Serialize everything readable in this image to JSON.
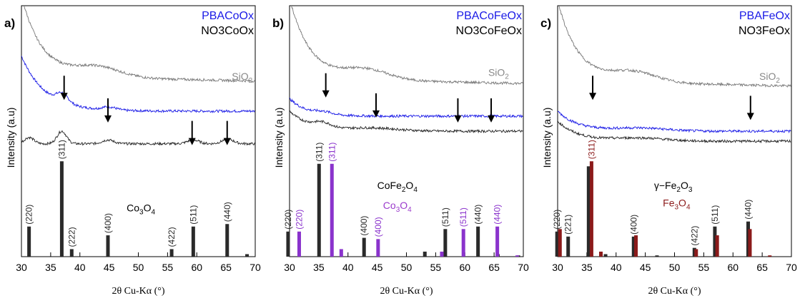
{
  "chart_data": [
    {
      "type": "line",
      "panel_label": "a)",
      "xlabel": "2θ Cu-Kα (°)",
      "ylabel": "Intensity (a.u)",
      "xlim": [
        30,
        70
      ],
      "xticks": [
        30,
        35,
        40,
        45,
        50,
        55,
        60,
        65,
        70
      ],
      "ylim": [
        0,
        100
      ],
      "legend": [
        "PBACoOx",
        "NO3CoOx"
      ],
      "legend_colors": [
        "#1a1ae6",
        "#000000"
      ],
      "legend_position": "top-right",
      "series": [
        {
          "name": "PBACoOx",
          "color": "#1a1ae6",
          "base": 58,
          "shape": "decay_high",
          "peaks": [
            [
              37.0,
              3.5,
              1.0
            ],
            [
              45.0,
              1.2,
              1.2
            ]
          ]
        },
        {
          "name": "NO3CoOx",
          "color": "#222222",
          "base": 45,
          "shape": "flat",
          "peaks": [
            [
              31.3,
              2.5,
              0.8
            ],
            [
              36.9,
              5.0,
              0.8
            ],
            [
              44.8,
              1.5,
              1.0
            ],
            [
              59.4,
              1.5,
              1.0
            ],
            [
              65.3,
              1.8,
              1.0
            ]
          ]
        },
        {
          "name": "SiO2",
          "color": "#777777",
          "base": 72,
          "shape": "silica",
          "peaks": []
        }
      ],
      "annotations": [
        {
          "text": "SiO",
          "sub": "2",
          "x": 66.0,
          "y": 70.5,
          "color": "#888888"
        },
        {
          "text": "Co",
          "sub": "3",
          "tail": "O",
          "sub2": "4",
          "x": 48.0,
          "y": 18,
          "color": "#000000"
        }
      ],
      "arrows": [
        [
          37.3,
          63
        ],
        [
          44.8,
          54
        ],
        [
          59.2,
          45
        ],
        [
          65.2,
          45
        ]
      ],
      "reference_bars": [
        {
          "name": "Co3O4",
          "color": "#2a2a2a",
          "offset": 0,
          "peaks": [
            [
              31.3,
              12,
              "(220)"
            ],
            [
              36.9,
              38,
              "(311)"
            ],
            [
              38.6,
              3,
              "(222)"
            ],
            [
              44.8,
              8.5,
              "(400)"
            ],
            [
              55.7,
              3,
              "(422)"
            ],
            [
              59.4,
              12,
              "(511)"
            ],
            [
              65.2,
              13,
              "(440)"
            ],
            [
              68.6,
              1,
              ""
            ]
          ]
        }
      ]
    },
    {
      "type": "line",
      "panel_label": "b)",
      "xlabel": "2θ Cu-Kα (°)",
      "ylabel": "Intensity (a.u)",
      "xlim": [
        30,
        70
      ],
      "xticks": [
        30,
        35,
        40,
        45,
        50,
        55,
        60,
        65,
        70
      ],
      "ylim": [
        0,
        100
      ],
      "legend": [
        "PBACoFeOx",
        "NO3CoFeOx"
      ],
      "legend_colors": [
        "#1a1ae6",
        "#000000"
      ],
      "legend_position": "top-right",
      "series": [
        {
          "name": "PBACoFeOx",
          "color": "#1a1ae6",
          "base": 56,
          "shape": "decay_mid",
          "peaks": [
            [
              35.8,
              1.0,
              1.5
            ]
          ]
        },
        {
          "name": "NO3CoFeOx",
          "color": "#222222",
          "base": 50,
          "shape": "decay_low",
          "peaks": [
            [
              35.6,
              2.0,
              1.5
            ]
          ]
        },
        {
          "name": "SiO2",
          "color": "#777777",
          "base": 71,
          "shape": "silica",
          "peaks": []
        }
      ],
      "annotations": [
        {
          "text": "SiO",
          "sub": "2",
          "x": 64.0,
          "y": 72,
          "color": "#888888"
        },
        {
          "text": "CoFe",
          "sub": "2",
          "tail": "O",
          "sub2": "4",
          "x": 45.0,
          "y": 27,
          "color": "#000000"
        },
        {
          "text": "Co",
          "sub": "3",
          "tail": "O",
          "sub2": "4",
          "x": 46.0,
          "y": 19,
          "color": "#9b3bcc"
        }
      ],
      "arrows": [
        [
          36.2,
          64
        ],
        [
          44.8,
          56
        ],
        [
          58.8,
          54
        ],
        [
          64.5,
          54
        ]
      ],
      "reference_bars": [
        {
          "name": "CoFe2O4",
          "color": "#2a2a2a",
          "offset": -0.35,
          "peaks": [
            [
              30.1,
              10,
              "(220)"
            ],
            [
              35.4,
              37,
              "(311)"
            ],
            [
              43.1,
              7.5,
              "(400)"
            ],
            [
              53.5,
              2,
              ""
            ],
            [
              57.0,
              11,
              "(511)"
            ],
            [
              62.6,
              12,
              "(440)"
            ],
            [
              66.0,
              1,
              ""
            ],
            [
              69.5,
              0.5,
              ""
            ]
          ]
        },
        {
          "name": "Co3O4",
          "color": "#8a33cc",
          "offset": 0.35,
          "peaks": [
            [
              31.3,
              10,
              "(220)"
            ],
            [
              36.9,
              37,
              "(311)"
            ],
            [
              38.5,
              3,
              ""
            ],
            [
              44.8,
              7,
              "(400)"
            ],
            [
              55.7,
              2,
              ""
            ],
            [
              59.4,
              11,
              "(511)"
            ],
            [
              65.2,
              12,
              "(440)"
            ],
            [
              68.6,
              0.5,
              ""
            ]
          ]
        }
      ]
    },
    {
      "type": "line",
      "panel_label": "c)",
      "xlabel": "2θ Cu-Kα (°)",
      "ylabel": "Intensity (a.u)",
      "xlim": [
        30,
        70
      ],
      "xticks": [
        30,
        35,
        40,
        45,
        50,
        55,
        60,
        65,
        70
      ],
      "ylim": [
        0,
        100
      ],
      "legend": [
        "PBAFeOx",
        "NO3FeOx"
      ],
      "legend_colors": [
        "#1a1ae6",
        "#000000"
      ],
      "legend_position": "top-right",
      "series": [
        {
          "name": "PBAFeOx",
          "color": "#1a1ae6",
          "base": 50,
          "shape": "decay_low",
          "peaks": []
        },
        {
          "name": "NO3FeOx",
          "color": "#222222",
          "base": 46,
          "shape": "decay_low",
          "peaks": []
        },
        {
          "name": "SiO2",
          "color": "#777777",
          "base": 70,
          "shape": "silica",
          "peaks": []
        }
      ],
      "annotations": [
        {
          "text": "SiO",
          "sub": "2",
          "x": 64.5,
          "y": 70.5,
          "color": "#888888"
        },
        {
          "text": "γ−Fe",
          "sub": "2",
          "tail": "O",
          "sub2": "3",
          "x": 46.5,
          "y": 27,
          "color": "#000000"
        },
        {
          "text": "Fe",
          "sub": "3",
          "tail": "O",
          "sub2": "4",
          "x": 48.0,
          "y": 20,
          "color": "#8b1a1a"
        }
      ],
      "arrows": [
        [
          36.0,
          63
        ],
        [
          63.0,
          55
        ]
      ],
      "reference_bars": [
        {
          "name": "γ-Fe2O3",
          "color": "#2a2a2a",
          "offset": -0.3,
          "peaks": [
            [
              30.2,
              10,
              "(220)"
            ],
            [
              32.1,
              8,
              "(221)"
            ],
            [
              35.6,
              36,
              ""
            ],
            [
              38.5,
              1,
              ""
            ],
            [
              43.3,
              8,
              "(400)"
            ],
            [
              47.3,
              0.5,
              ""
            ],
            [
              53.7,
              3.5,
              "(422)"
            ],
            [
              57.2,
              12,
              "(511)"
            ],
            [
              62.9,
              14,
              "(440)"
            ]
          ]
        },
        {
          "name": "Fe3O4",
          "color": "#8b1a1a",
          "offset": 0.3,
          "peaks": [
            [
              30.1,
              11,
              ""
            ],
            [
              35.5,
              38,
              "(311)"
            ],
            [
              37.1,
              2,
              ""
            ],
            [
              43.1,
              8.5,
              ""
            ],
            [
              53.4,
              3,
              ""
            ],
            [
              57.0,
              8.5,
              ""
            ],
            [
              62.6,
              11,
              ""
            ],
            [
              66.0,
              0.5,
              ""
            ]
          ]
        }
      ]
    }
  ]
}
